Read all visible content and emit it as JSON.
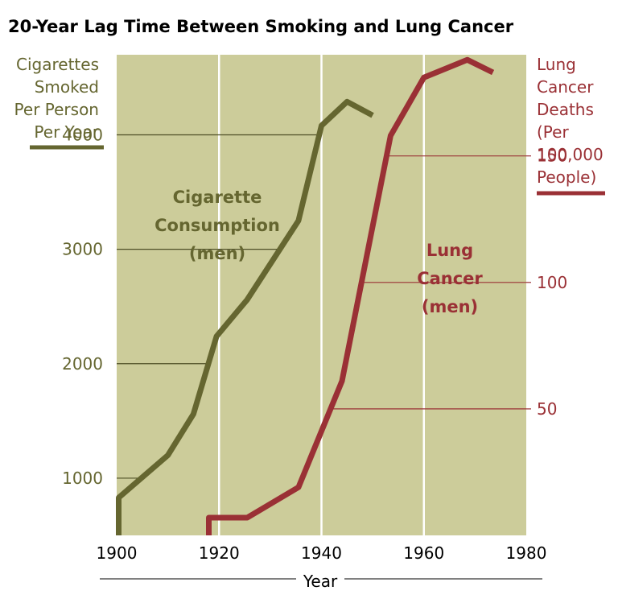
{
  "chart_data": {
    "type": "line",
    "title": "20-Year Lag Time Between Smoking and Lung Cancer",
    "xlabel": "Year",
    "xlim": [
      1900,
      1980
    ],
    "x_ticks": [
      "1900",
      "1920",
      "1940",
      "1960",
      "1980"
    ],
    "y_left": {
      "label_lines": [
        "Cigarettes",
        "Smoked",
        "Per Person",
        "Per Year"
      ],
      "range": [
        500,
        4700
      ],
      "ticks": [
        "1000",
        "2000",
        "3000",
        "4000"
      ],
      "color": "#656630"
    },
    "y_right": {
      "label_lines": [
        "Lung",
        "Cancer",
        "Deaths",
        "(Per",
        "100,000",
        "People)"
      ],
      "range": [
        0,
        190
      ],
      "ticks": [
        "50",
        "100",
        "150"
      ],
      "color": "#9a3035"
    },
    "series": [
      {
        "name": "Cigarette Consumption (men)",
        "name_lines": [
          "Cigarette",
          "Consumption",
          "(men)"
        ],
        "axis": "left",
        "color": "#656630",
        "points": [
          [
            1900.4,
            500
          ],
          [
            1900.4,
            830
          ],
          [
            1910,
            1200
          ],
          [
            1915,
            1560
          ],
          [
            1919.5,
            2240
          ],
          [
            1925.5,
            2560
          ],
          [
            1935.5,
            3250
          ],
          [
            1940,
            4080
          ],
          [
            1945,
            4290
          ],
          [
            1950,
            4170
          ]
        ]
      },
      {
        "name": "Lung Cancer (men)",
        "name_lines": [
          "Lung",
          "Cancer",
          "(men)"
        ],
        "axis": "right",
        "color": "#9a3035",
        "points": [
          [
            1918,
            0
          ],
          [
            1918,
            7
          ],
          [
            1925.5,
            7
          ],
          [
            1935.5,
            19
          ],
          [
            1944,
            61
          ],
          [
            1953.5,
            158
          ],
          [
            1960,
            181
          ],
          [
            1968.5,
            188
          ],
          [
            1973.5,
            183
          ]
        ]
      }
    ],
    "annotations_pos": "series labels inside plot",
    "grid": true,
    "background_color": "#cccc9a"
  }
}
